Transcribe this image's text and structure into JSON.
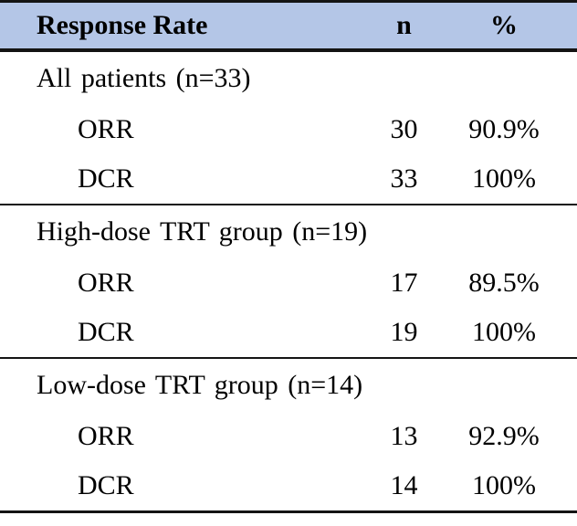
{
  "colors": {
    "header_bg": "#B4C6E7",
    "border": "#141414",
    "text": "#000000"
  },
  "table": {
    "headers": [
      "Response Rate",
      "n",
      "%"
    ],
    "sections": [
      {
        "label": "All patients (n=33)",
        "rows": [
          {
            "measure": "ORR",
            "n": "30",
            "pct": "90.9%"
          },
          {
            "measure": "DCR",
            "n": "33",
            "pct": "100%"
          }
        ]
      },
      {
        "label": "High-dose TRT group (n=19)",
        "rows": [
          {
            "measure": "ORR",
            "n": "17",
            "pct": "89.5%"
          },
          {
            "measure": "DCR",
            "n": "19",
            "pct": "100%"
          }
        ]
      },
      {
        "label": "Low-dose TRT group (n=14)",
        "rows": [
          {
            "measure": "ORR",
            "n": "13",
            "pct": "92.9%"
          },
          {
            "measure": "DCR",
            "n": "14",
            "pct": "100%"
          }
        ]
      }
    ]
  }
}
